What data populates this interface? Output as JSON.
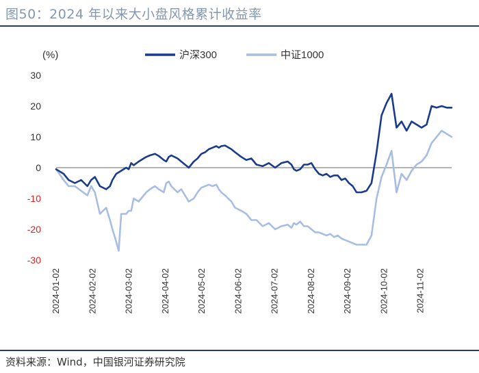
{
  "figure": {
    "title": "图50：2024 年以来大小盘风格累计收益率",
    "source": "资料来源：Wind，中国银河证券研究院"
  },
  "colors": {
    "hs300": "#1a3a8c",
    "zz1000": "#a7bde3",
    "rule": "#1f3a7a",
    "title": "#8497b0",
    "negative_tick": "#e02020",
    "positive_tick": "#333333"
  },
  "chart_data": {
    "type": "line",
    "title": "2024 年以来大小盘风格累计收益率",
    "ylabel": "(%)",
    "xlabel": "",
    "ylim": [
      -30,
      30
    ],
    "yticks": [
      30,
      20,
      10,
      0,
      -10,
      -20,
      -30
    ],
    "xticks": [
      "2024-01-02",
      "2024-02-02",
      "2024-03-02",
      "2024-04-02",
      "2024-05-02",
      "2024-06-02",
      "2024-07-02",
      "2024-08-02",
      "2024-09-02",
      "2024-10-02",
      "2024-11-02"
    ],
    "legend_position": "top",
    "x": [
      0,
      6,
      10,
      15,
      20,
      25,
      28,
      31,
      35,
      40,
      43,
      45,
      48,
      50,
      52,
      56,
      58,
      60,
      62,
      66,
      70,
      72,
      75,
      79,
      82,
      86,
      88,
      90,
      92,
      97,
      100,
      103,
      106,
      110,
      113,
      116,
      119,
      122,
      125,
      128,
      130,
      132,
      135,
      140,
      143,
      148,
      152,
      156,
      160,
      165,
      170,
      175,
      180,
      185,
      188,
      190,
      192,
      195,
      198,
      201,
      204,
      207,
      210,
      213,
      216,
      219,
      222,
      225,
      228,
      231,
      234,
      237,
      240,
      244,
      248,
      252,
      256,
      260,
      264,
      268,
      272,
      276,
      280,
      284,
      288,
      292,
      296,
      300,
      304,
      308,
      312,
      316
    ],
    "series": [
      {
        "name": "沪深300",
        "values": [
          -0.5,
          -2,
          -4,
          -5,
          -4,
          -6,
          -4,
          -3,
          -6,
          -7,
          -6,
          -4,
          -2,
          -1.5,
          -1,
          0,
          -0.5,
          1.5,
          0.8,
          2,
          3,
          3.5,
          4,
          4.5,
          3.8,
          2.5,
          2,
          3.5,
          4,
          3,
          2,
          1,
          0,
          2,
          3,
          4.5,
          5,
          6,
          6.5,
          7,
          6.5,
          7,
          7.2,
          6,
          5,
          3.5,
          2.5,
          3,
          1,
          0.5,
          1.5,
          0,
          1.5,
          2,
          1,
          -0.5,
          -1,
          -0.5,
          1,
          1,
          1.5,
          -0.5,
          -2,
          -2.5,
          -2,
          -3,
          -2.5,
          -2.5,
          -4,
          -3.5,
          -5,
          -6,
          -8,
          -8,
          -7.5,
          -5,
          5,
          17,
          21,
          24,
          13,
          15,
          12,
          15,
          14,
          13,
          14,
          20,
          19.5,
          20,
          19.5,
          19.5
        ],
        "color": "#1a3a8c"
      },
      {
        "name": "中证1000",
        "values": [
          -0.5,
          -4,
          -6,
          -6,
          -7.5,
          -9,
          -6,
          -8,
          -15,
          -13,
          -17,
          -20,
          -24,
          -27,
          -15,
          -15,
          -14,
          -14,
          -10,
          -11,
          -9,
          -8,
          -7,
          -6,
          -7,
          -8,
          -5,
          -4.5,
          -6,
          -8,
          -7,
          -9,
          -11,
          -10,
          -8,
          -6.5,
          -6,
          -5.5,
          -6,
          -5.5,
          -7,
          -8,
          -9,
          -11,
          -13,
          -14,
          -15,
          -17,
          -17,
          -19,
          -18,
          -20,
          -19,
          -18.5,
          -19.5,
          -18,
          -18.5,
          -17.5,
          -19,
          -19,
          -20,
          -21,
          -21,
          -21.5,
          -22,
          -21.5,
          -22.5,
          -22,
          -23,
          -23.5,
          -24,
          -24.5,
          -25,
          -25,
          -25,
          -22,
          -10,
          -3,
          1,
          5.5,
          -8,
          -2,
          -4,
          -1,
          1,
          2,
          4,
          8,
          10,
          12,
          11,
          10
        ],
        "color": "#a7bde3"
      }
    ]
  }
}
